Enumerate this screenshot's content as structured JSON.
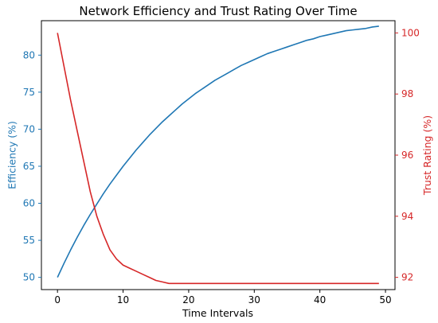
{
  "chart_data": {
    "type": "line",
    "title": "Network Efficiency and Trust Rating Over Time",
    "xlabel": "Time Intervals",
    "ylabel_left": "Efficiency (%)",
    "ylabel_right": "Trust Rating (%)",
    "xlim": [
      -2.45,
      51.45
    ],
    "ylim_left": [
      48.35,
      84.65
    ],
    "ylim_right": [
      91.6,
      100.4
    ],
    "x_ticks": [
      0,
      10,
      20,
      30,
      40,
      50
    ],
    "y_left_ticks": [
      50,
      55,
      60,
      65,
      70,
      75,
      80
    ],
    "y_right_ticks": [
      92,
      94,
      96,
      98,
      100
    ],
    "grid": false,
    "colors": {
      "left_axis": "#1f77b4",
      "right_axis": "#d62728"
    },
    "series": [
      {
        "axis": "left",
        "color": "#1f77b4",
        "x": [
          0,
          1,
          2,
          3,
          4,
          5,
          6,
          7,
          8,
          9,
          10,
          11,
          12,
          13,
          14,
          15,
          16,
          17,
          18,
          19,
          20,
          21,
          22,
          23,
          24,
          25,
          26,
          27,
          28,
          29,
          30,
          31,
          32,
          33,
          34,
          35,
          36,
          37,
          38,
          39,
          40,
          41,
          42,
          43,
          44,
          45,
          46,
          47,
          48,
          49
        ],
        "values": [
          50.0,
          51.9,
          53.7,
          55.4,
          57.0,
          58.5,
          59.9,
          61.3,
          62.6,
          63.8,
          65.0,
          66.1,
          67.2,
          68.2,
          69.2,
          70.1,
          71.0,
          71.8,
          72.6,
          73.4,
          74.1,
          74.8,
          75.4,
          76.0,
          76.6,
          77.1,
          77.6,
          78.1,
          78.6,
          79.0,
          79.4,
          79.8,
          80.2,
          80.5,
          80.8,
          81.1,
          81.4,
          81.7,
          82.0,
          82.2,
          82.5,
          82.7,
          82.9,
          83.1,
          83.3,
          83.4,
          83.5,
          83.6,
          83.8,
          83.9
        ]
      },
      {
        "axis": "right",
        "color": "#d62728",
        "x": [
          0,
          1,
          2,
          3,
          4,
          5,
          6,
          7,
          8,
          9,
          10,
          11,
          12,
          13,
          14,
          15,
          16,
          17,
          18,
          19,
          20,
          25,
          30,
          35,
          40,
          45,
          49
        ],
        "values": [
          100.0,
          98.9,
          97.8,
          96.8,
          95.8,
          94.8,
          94.0,
          93.4,
          92.9,
          92.6,
          92.4,
          92.3,
          92.2,
          92.1,
          92.0,
          91.9,
          91.85,
          91.8,
          91.8,
          91.8,
          91.8,
          91.8,
          91.8,
          91.8,
          91.8,
          91.8,
          91.8
        ]
      }
    ]
  }
}
